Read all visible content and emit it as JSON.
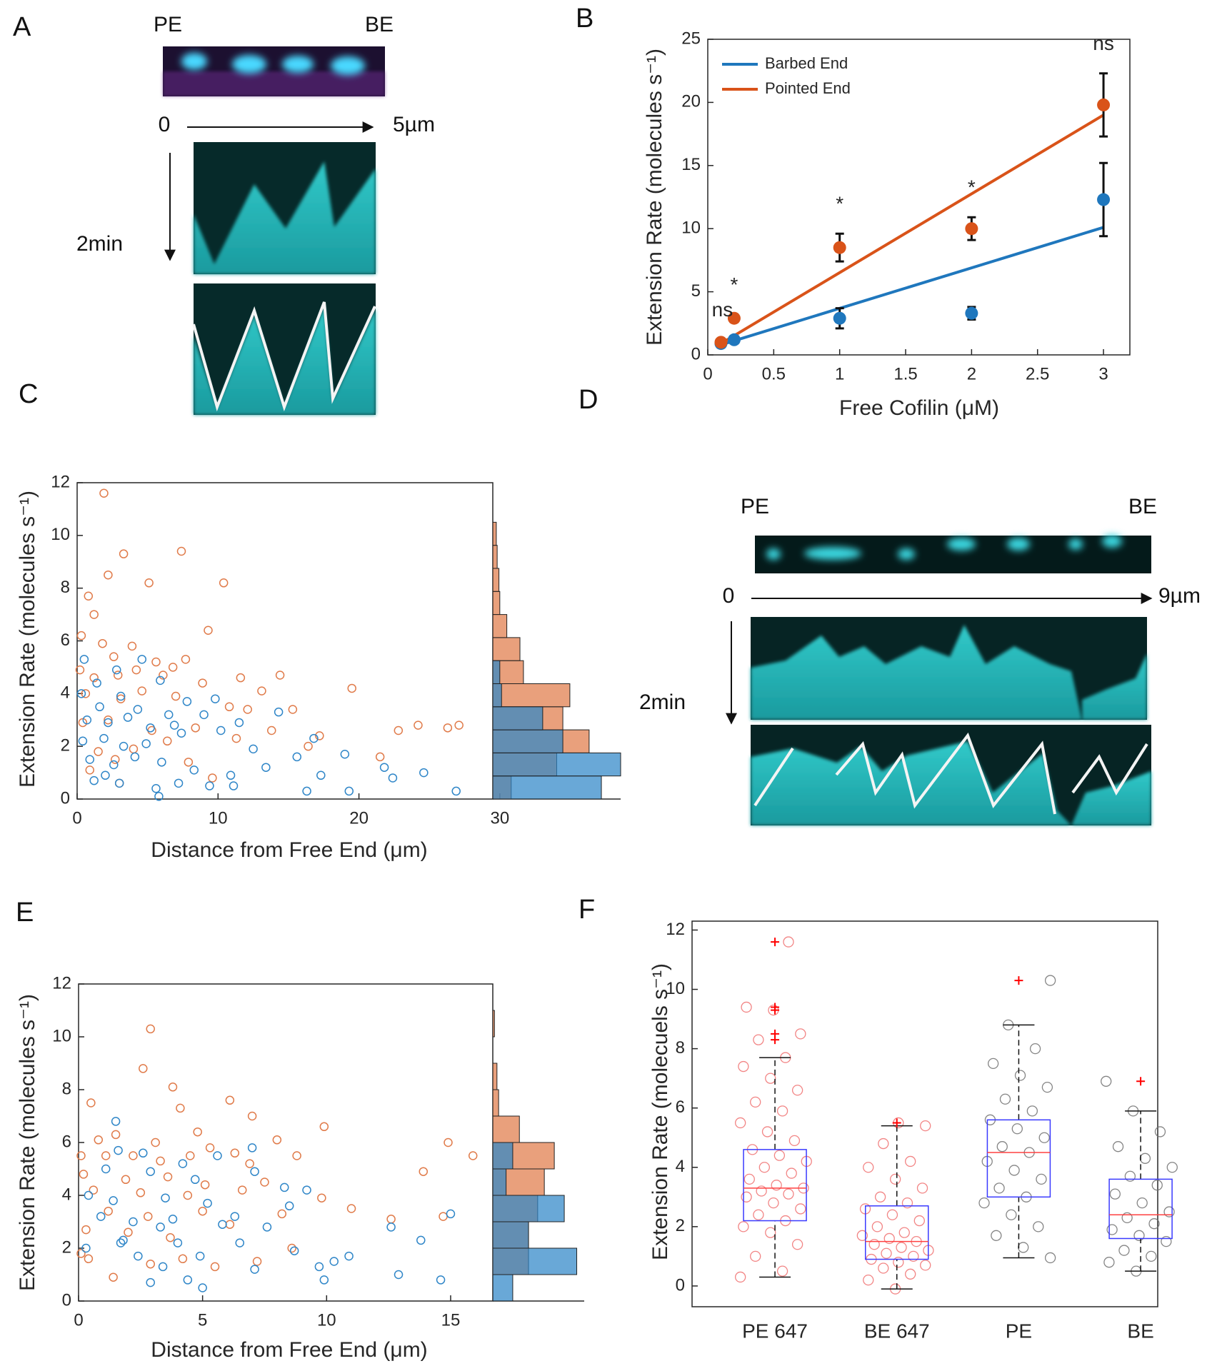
{
  "panel_labels": [
    "A",
    "B",
    "C",
    "D",
    "E",
    "F"
  ],
  "kymograph_a": {
    "left_label": "PE",
    "right_label": "BE",
    "start": "0",
    "length": "5µm",
    "time": "2min"
  },
  "kymograph_d": {
    "left_label": "PE",
    "right_label": "BE",
    "start": "0",
    "length": "9µm",
    "time": "2min"
  },
  "chart_data": [
    {
      "type": "errorbar_line",
      "xlabel": "Free Cofilin (μM)",
      "ylabel": "Extension Rate (molecules s⁻¹)",
      "x": [
        0.1,
        0.2,
        1,
        2,
        3
      ],
      "series": [
        {
          "name": "Barbed End",
          "color": "#1f77bd",
          "values": [
            0.9,
            1.2,
            2.9,
            3.3,
            12.3
          ],
          "errors": [
            0.3,
            0.2,
            0.8,
            0.5,
            2.9
          ],
          "fit": [
            0.8,
            10.1
          ]
        },
        {
          "name": "Pointed End",
          "color": "#d95319",
          "values": [
            1.0,
            2.9,
            8.5,
            10.0,
            19.8
          ],
          "errors": [
            0.2,
            0.3,
            1.1,
            0.9,
            2.5
          ],
          "fit": [
            0.9,
            19.0
          ]
        }
      ],
      "fit_x": [
        0.1,
        3
      ],
      "annotations": [
        "ns",
        "*",
        "*",
        "*",
        "ns"
      ],
      "xlim": [
        0,
        3.2
      ],
      "xticks": [
        0,
        0.5,
        1,
        1.5,
        2,
        2.5,
        3
      ],
      "ylim": [
        0,
        25
      ],
      "yticks": [
        0,
        5,
        10,
        15,
        20,
        25
      ],
      "legend": "upper left"
    },
    {
      "type": "scatter_hist",
      "xlabel": "Distance from Free End (μm)",
      "ylabel": "Extension Rate (molecules s⁻¹)",
      "series": [
        {
          "color": "#e07b4a",
          "x": [
            1.9,
            3.3,
            5.1,
            7.4,
            10.4,
            0.8,
            2.2,
            1.2,
            9.3,
            0.3,
            1.8,
            2.6,
            3.9,
            5.6,
            6.8,
            7.7,
            0.2,
            1.2,
            2.9,
            4.2,
            6.1,
            8.9,
            11.6,
            13.1,
            14.4,
            0.6,
            3.1,
            4.6,
            7.0,
            10.8,
            12.1,
            19.5,
            15.3,
            17.2,
            22.8,
            24.2,
            26.3,
            27.1,
            0.4,
            2.2,
            5.3,
            8.4,
            11.3,
            13.8,
            16.4,
            21.5,
            1.5,
            4.0,
            6.4,
            0.9,
            3.0,
            7.9,
            9.6,
            2.7
          ],
          "values": [
            11.6,
            9.3,
            8.2,
            9.4,
            8.2,
            7.7,
            8.5,
            7.0,
            6.4,
            6.2,
            5.9,
            5.4,
            5.8,
            5.2,
            5.0,
            5.3,
            4.9,
            4.6,
            4.7,
            4.9,
            4.7,
            4.4,
            4.6,
            4.1,
            4.7,
            4.0,
            3.8,
            4.1,
            3.9,
            3.5,
            3.4,
            4.2,
            3.4,
            2.4,
            2.6,
            2.8,
            2.7,
            2.8,
            2.9,
            3.0,
            2.6,
            2.7,
            2.3,
            2.6,
            2.0,
            1.6,
            1.8,
            1.9,
            2.2,
            1.1,
            0.6,
            1.4,
            0.8,
            1.5
          ],
          "hist": [
            21,
            73,
            110,
            80,
            88,
            35,
            31,
            16,
            8,
            7,
            5,
            4
          ]
        },
        {
          "color": "#2f86c8",
          "x": [
            0.5,
            1.4,
            2.8,
            4.6,
            5.9,
            0.3,
            1.6,
            3.1,
            4.3,
            6.5,
            7.8,
            9.8,
            0.7,
            2.2,
            3.6,
            5.2,
            6.9,
            9.0,
            11.5,
            14.3,
            16.8,
            0.4,
            1.9,
            3.3,
            4.9,
            7.4,
            10.2,
            12.5,
            15.6,
            19.0,
            21.8,
            0.9,
            2.6,
            4.1,
            6.0,
            8.3,
            10.9,
            13.4,
            17.3,
            22.4,
            24.6,
            26.9,
            1.2,
            3.0,
            5.6,
            7.2,
            9.4,
            11.1,
            16.3,
            19.3,
            5.8,
            2.0
          ],
          "values": [
            5.3,
            4.4,
            4.9,
            5.3,
            4.5,
            4.0,
            3.5,
            3.9,
            3.4,
            3.2,
            3.7,
            3.8,
            3.0,
            2.9,
            3.1,
            2.7,
            2.8,
            3.2,
            2.9,
            3.3,
            2.3,
            2.2,
            2.3,
            2.0,
            2.1,
            2.5,
            2.6,
            1.9,
            1.6,
            1.7,
            1.2,
            1.5,
            1.3,
            1.6,
            1.4,
            1.1,
            0.9,
            1.2,
            0.9,
            0.8,
            1.0,
            0.3,
            0.7,
            0.6,
            0.4,
            0.6,
            0.5,
            0.5,
            0.3,
            0.3,
            0.1,
            0.9
          ],
          "hist": [
            124,
            146,
            80,
            57,
            10,
            8,
            0,
            0,
            0,
            0,
            0,
            0
          ]
        }
      ],
      "bins": [
        0,
        0.875,
        1.75,
        2.625,
        3.5,
        4.375,
        5.25,
        6.125,
        7,
        7.875,
        8.75,
        9.625,
        10.5
      ],
      "hist_xlim": [
        0,
        146
      ],
      "xlim": [
        0,
        29.5
      ],
      "xticks": [
        0,
        10,
        20,
        30
      ],
      "ylim": [
        0,
        12
      ],
      "yticks": [
        0,
        2,
        4,
        6,
        8,
        10,
        12
      ]
    },
    {
      "type": "scatter_hist",
      "xlabel": "Distance from Free End (μm)",
      "ylabel": "Extension Rate (molecules s⁻¹)",
      "series": [
        {
          "color": "#e07b4a",
          "x": [
            2.9,
            2.6,
            3.8,
            0.5,
            6.1,
            7.0,
            4.1,
            9.9,
            0.8,
            1.5,
            3.1,
            4.8,
            5.3,
            6.3,
            8.0,
            14.9,
            15.9,
            0.1,
            1.1,
            2.2,
            3.3,
            4.5,
            6.9,
            8.8,
            0.2,
            1.9,
            3.6,
            5.1,
            7.5,
            13.9,
            0.6,
            2.5,
            4.4,
            6.6,
            9.8,
            1.2,
            2.8,
            5.0,
            8.2,
            11.0,
            12.6,
            0.3,
            2.0,
            3.7,
            6.1,
            8.6,
            14.7,
            0.4,
            1.4,
            2.9,
            4.2,
            7.2,
            0.1,
            5.5
          ],
          "values": [
            10.3,
            8.8,
            8.1,
            7.5,
            7.6,
            7.0,
            7.3,
            6.6,
            6.1,
            6.3,
            6.0,
            6.4,
            5.8,
            5.6,
            6.1,
            6.0,
            5.5,
            5.5,
            5.5,
            5.5,
            5.3,
            5.5,
            5.2,
            5.5,
            4.8,
            4.6,
            4.7,
            4.4,
            4.5,
            4.9,
            4.2,
            4.1,
            4.0,
            4.2,
            3.9,
            3.4,
            3.2,
            3.4,
            3.3,
            3.5,
            3.1,
            2.7,
            2.6,
            2.4,
            2.9,
            2.0,
            3.2,
            1.6,
            0.9,
            1.4,
            1.6,
            1.5,
            1.8,
            1.3
          ],
          "hist": [
            0,
            43,
            43,
            54,
            62,
            74,
            32,
            7,
            5,
            0,
            2
          ]
        },
        {
          "color": "#2f86c8",
          "x": [
            1.5,
            7.0,
            1.6,
            2.6,
            4.2,
            5.6,
            1.1,
            2.9,
            4.7,
            7.1,
            8.3,
            9.2,
            0.4,
            1.4,
            3.5,
            5.2,
            6.3,
            8.5,
            0.9,
            2.2,
            3.8,
            5.8,
            7.6,
            12.6,
            15.0,
            1.8,
            4.0,
            6.5,
            8.7,
            10.3,
            13.8,
            0.3,
            2.4,
            3.4,
            4.9,
            7.1,
            9.7,
            10.9,
            12.9,
            14.6,
            2.9,
            4.4,
            5.0,
            9.9,
            1.7,
            3.3
          ],
          "values": [
            6.8,
            5.8,
            5.7,
            5.6,
            5.2,
            5.5,
            5.0,
            4.9,
            4.6,
            4.9,
            4.3,
            4.2,
            4.0,
            3.8,
            3.9,
            3.7,
            3.2,
            3.6,
            3.2,
            3.0,
            3.1,
            2.9,
            2.8,
            2.8,
            3.3,
            2.3,
            2.2,
            2.2,
            1.9,
            1.5,
            2.3,
            2.0,
            1.7,
            1.3,
            1.7,
            1.2,
            1.3,
            1.7,
            1.0,
            0.8,
            0.7,
            0.8,
            0.5,
            0.8,
            2.2,
            2.8
          ],
          "hist": [
            24,
            101,
            43,
            86,
            16,
            24,
            0,
            0,
            0,
            0,
            0
          ]
        }
      ],
      "bins": [
        0,
        1,
        2,
        3,
        4,
        5,
        6,
        7,
        8,
        9,
        10,
        11
      ],
      "hist_xlim": [
        0,
        110
      ],
      "xlim": [
        0,
        16.7
      ],
      "xticks": [
        0,
        5,
        10,
        15
      ],
      "ylim": [
        0,
        12
      ],
      "yticks": [
        0,
        2,
        4,
        6,
        8,
        10,
        12
      ]
    },
    {
      "type": "box",
      "ylabel": "Extension Rate (molecuels s⁻¹)",
      "categories": [
        "PE 647",
        "BE 647",
        "PE",
        "BE"
      ],
      "point_colors": [
        "#f07070",
        "#f07070",
        "#707070",
        "#707070"
      ],
      "box_color": "#3a3aff",
      "median_color": "#ff4040",
      "outlier_color": "#ff0000",
      "boxes": [
        {
          "whislo": 0.3,
          "q1": 2.2,
          "med": 3.3,
          "q3": 4.6,
          "whishi": 7.7,
          "outliers": [
            8.3,
            8.5,
            9.3,
            9.4,
            11.6
          ]
        },
        {
          "whislo": -0.1,
          "q1": 0.9,
          "med": 1.5,
          "q3": 2.7,
          "whishi": 5.4,
          "outliers": [
            5.5
          ]
        },
        {
          "whislo": 0.95,
          "q1": 3.0,
          "med": 4.5,
          "q3": 5.6,
          "whishi": 8.8,
          "outliers": [
            10.3
          ]
        },
        {
          "whislo": 0.5,
          "q1": 1.6,
          "med": 2.4,
          "q3": 3.6,
          "whishi": 5.9,
          "outliers": [
            6.9
          ]
        }
      ],
      "points": [
        [
          0.3,
          0.5,
          1.0,
          1.4,
          1.8,
          2.0,
          2.2,
          2.4,
          2.6,
          2.8,
          3.0,
          3.1,
          3.2,
          3.3,
          3.4,
          3.6,
          3.8,
          4.0,
          4.2,
          4.4,
          4.6,
          4.9,
          5.2,
          5.5,
          5.9,
          6.2,
          6.6,
          7.0,
          7.4,
          7.7,
          8.3,
          8.5,
          9.3,
          9.4,
          11.6
        ],
        [
          -0.1,
          0.2,
          0.4,
          0.6,
          0.7,
          0.8,
          0.9,
          1.0,
          1.1,
          1.2,
          1.3,
          1.4,
          1.5,
          1.6,
          1.7,
          1.8,
          2.0,
          2.2,
          2.4,
          2.6,
          2.8,
          3.0,
          3.3,
          3.6,
          4.0,
          4.2,
          4.8,
          5.4,
          5.5
        ],
        [
          0.95,
          1.3,
          1.7,
          2.0,
          2.4,
          2.8,
          3.0,
          3.3,
          3.6,
          3.9,
          4.2,
          4.5,
          4.7,
          5.0,
          5.3,
          5.6,
          5.9,
          6.3,
          6.7,
          7.1,
          7.5,
          8.0,
          8.8,
          10.3
        ],
        [
          0.5,
          0.8,
          1.0,
          1.2,
          1.5,
          1.7,
          1.9,
          2.1,
          2.3,
          2.5,
          2.8,
          3.1,
          3.4,
          3.7,
          4.0,
          4.3,
          4.7,
          5.2,
          5.9,
          6.9
        ]
      ],
      "ylim": [
        -0.7,
        12.3
      ],
      "yticks": [
        0,
        2,
        4,
        6,
        8,
        10,
        12
      ]
    }
  ]
}
